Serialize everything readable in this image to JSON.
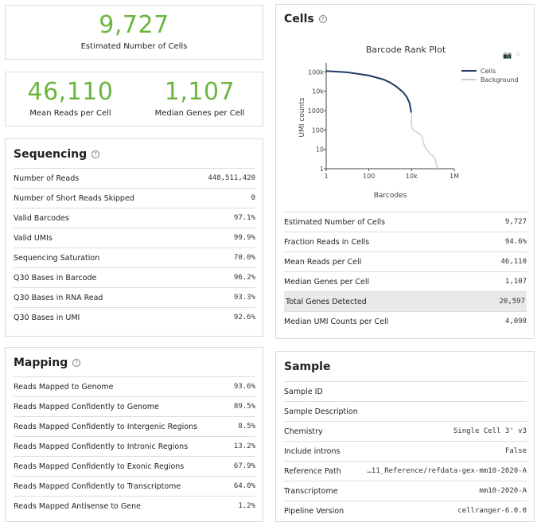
{
  "summary": {
    "cells_value": "9,727",
    "cells_label": "Estimated Number of Cells",
    "mean_reads_value": "46,110",
    "mean_reads_label": "Mean Reads per Cell",
    "median_genes_value": "1,107",
    "median_genes_label": "Median Genes per Cell"
  },
  "sequencing": {
    "title": "Sequencing",
    "rows": [
      {
        "k": "Number of Reads",
        "v": "448,511,420"
      },
      {
        "k": "Number of Short Reads Skipped",
        "v": "0"
      },
      {
        "k": "Valid Barcodes",
        "v": "97.1%"
      },
      {
        "k": "Valid UMIs",
        "v": "99.9%"
      },
      {
        "k": "Sequencing Saturation",
        "v": "70.0%"
      },
      {
        "k": "Q30 Bases in Barcode",
        "v": "96.2%"
      },
      {
        "k": "Q30 Bases in RNA Read",
        "v": "93.3%"
      },
      {
        "k": "Q30 Bases in UMI",
        "v": "92.6%"
      }
    ]
  },
  "mapping": {
    "title": "Mapping",
    "rows": [
      {
        "k": "Reads Mapped to Genome",
        "v": "93.6%"
      },
      {
        "k": "Reads Mapped Confidently to Genome",
        "v": "89.5%"
      },
      {
        "k": "Reads Mapped Confidently to Intergenic Regions",
        "v": "8.5%"
      },
      {
        "k": "Reads Mapped Confidently to Intronic Regions",
        "v": "13.2%"
      },
      {
        "k": "Reads Mapped Confidently to Exonic Regions",
        "v": "67.9%"
      },
      {
        "k": "Reads Mapped Confidently to Transcriptome",
        "v": "64.0%"
      },
      {
        "k": "Reads Mapped Antisense to Gene",
        "v": "1.2%"
      }
    ]
  },
  "cells": {
    "title": "Cells",
    "rows": [
      {
        "k": "Estimated Number of Cells",
        "v": "9,727"
      },
      {
        "k": "Fraction Reads in Cells",
        "v": "94.6%"
      },
      {
        "k": "Mean Reads per Cell",
        "v": "46,110"
      },
      {
        "k": "Median Genes per Cell",
        "v": "1,107"
      },
      {
        "k": "Total Genes Detected",
        "v": "20,597"
      },
      {
        "k": "Median UMI Counts per Cell",
        "v": "4,098"
      }
    ]
  },
  "sample": {
    "title": "Sample",
    "rows": [
      {
        "k": "Sample ID",
        "v": ""
      },
      {
        "k": "Sample Description",
        "v": ""
      },
      {
        "k": "Chemistry",
        "v": "Single Cell 3' v3"
      },
      {
        "k": "Include introns",
        "v": "False"
      },
      {
        "k": "Reference Path",
        "v": "…11_Reference/refdata-gex-mm10-2020-A"
      },
      {
        "k": "Transcriptome",
        "v": "mm10-2020-A"
      },
      {
        "k": "Pipeline Version",
        "v": "cellranger-6.0.0"
      }
    ]
  },
  "chart_data": {
    "type": "line",
    "title": "Barcode Rank Plot",
    "xlabel": "Barcodes",
    "ylabel": "UMI counts",
    "x_scale": "log",
    "y_scale": "log",
    "xlim": [
      1,
      1000000
    ],
    "ylim": [
      1,
      200000
    ],
    "x_ticks": [
      {
        "v": 1,
        "label": "1"
      },
      {
        "v": 100,
        "label": "100"
      },
      {
        "v": 10000,
        "label": "10k"
      },
      {
        "v": 1000000,
        "label": "1M"
      }
    ],
    "y_ticks": [
      {
        "v": 1,
        "label": "1"
      },
      {
        "v": 10,
        "label": "10"
      },
      {
        "v": 100,
        "label": "100"
      },
      {
        "v": 1000,
        "label": "1000"
      },
      {
        "v": 10000,
        "label": "10k"
      },
      {
        "v": 100000,
        "label": "100k"
      }
    ],
    "legend_position": "top-right",
    "series": [
      {
        "name": "Cells",
        "color": "#1f3a68",
        "x": [
          1,
          10,
          100,
          500,
          1000,
          2000,
          4000,
          6000,
          8000,
          9727
        ],
        "y": [
          110000,
          95000,
          65000,
          40000,
          28000,
          17000,
          9000,
          5000,
          2500,
          800
        ]
      },
      {
        "name": "Background",
        "color": "#cccccc",
        "x": [
          9727,
          10000,
          11000,
          13000,
          16000,
          20000,
          25000,
          30000,
          40000,
          55000,
          70000,
          90000,
          110000,
          130000,
          140000,
          160000
        ],
        "y": [
          800,
          200,
          110,
          90,
          80,
          70,
          60,
          50,
          15,
          9,
          6,
          5,
          4,
          3,
          2,
          1
        ]
      }
    ],
    "colors": {
      "cells": "#1f3a68",
      "background": "#cccccc",
      "kpi": "#6cb63f"
    }
  }
}
